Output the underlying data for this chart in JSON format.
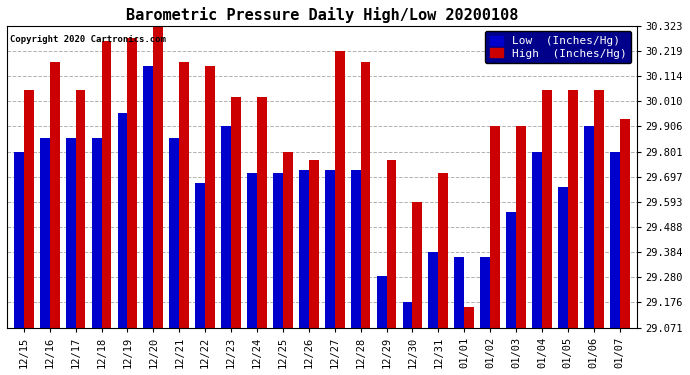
{
  "title": "Barometric Pressure Daily High/Low 20200108",
  "copyright": "Copyright 2020 Cartronics.com",
  "legend_low": "Low  (Inches/Hg)",
  "legend_high": "High  (Inches/Hg)",
  "dates": [
    "12/15",
    "12/16",
    "12/17",
    "12/18",
    "12/19",
    "12/20",
    "12/21",
    "12/22",
    "12/23",
    "12/24",
    "12/25",
    "12/26",
    "12/27",
    "12/28",
    "12/29",
    "12/30",
    "12/31",
    "01/01",
    "01/02",
    "01/03",
    "01/04",
    "01/05",
    "01/06",
    "01/07"
  ],
  "low": [
    29.801,
    29.857,
    29.857,
    29.857,
    29.96,
    30.155,
    29.857,
    29.67,
    29.906,
    29.712,
    29.712,
    29.723,
    29.723,
    29.723,
    29.287,
    29.176,
    29.384,
    29.363,
    29.363,
    29.549,
    29.801,
    29.655,
    29.906,
    29.801
  ],
  "high": [
    30.057,
    30.171,
    30.057,
    30.26,
    30.27,
    30.323,
    30.171,
    30.155,
    30.028,
    30.028,
    29.801,
    29.764,
    30.219,
    30.171,
    29.764,
    29.593,
    29.712,
    29.155,
    29.906,
    29.906,
    30.057,
    30.057,
    30.057,
    29.936
  ],
  "ylim_min": 29.071,
  "ylim_max": 30.323,
  "yticks": [
    29.071,
    29.176,
    29.28,
    29.384,
    29.488,
    29.593,
    29.697,
    29.801,
    29.906,
    30.01,
    30.114,
    30.219,
    30.323
  ],
  "bar_width": 0.38,
  "low_color": "#0000cc",
  "high_color": "#cc0000",
  "background_color": "#ffffff",
  "grid_color": "#aaaaaa",
  "title_fontsize": 11,
  "tick_fontsize": 7.5,
  "legend_fontsize": 8
}
